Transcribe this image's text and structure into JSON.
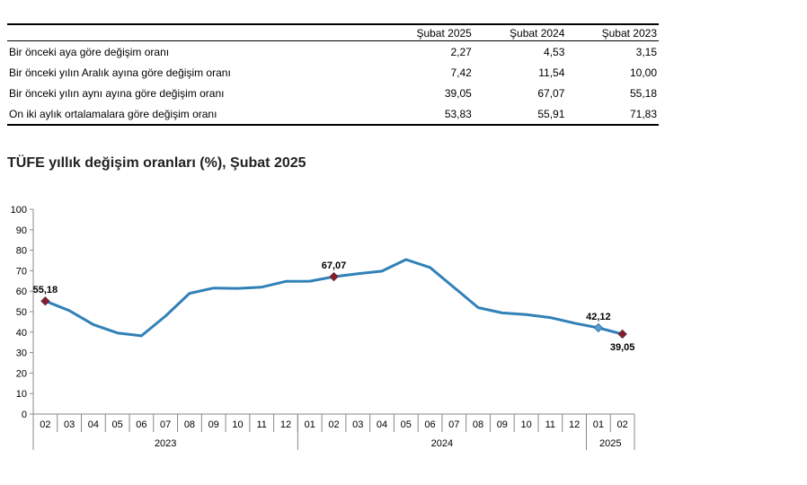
{
  "table": {
    "headers": [
      "",
      "Şubat 2025",
      "Şubat 2024",
      "Şubat 2023"
    ],
    "rows": [
      {
        "label": "Bir önceki aya göre değişim oranı",
        "values": [
          "2,27",
          "4,53",
          "3,15"
        ]
      },
      {
        "label": "Bir önceki yılın Aralık ayına göre değişim oranı",
        "values": [
          "7,42",
          "11,54",
          "10,00"
        ]
      },
      {
        "label": "Bir önceki yılın aynı ayına göre değişim oranı",
        "values": [
          "39,05",
          "67,07",
          "55,18"
        ]
      },
      {
        "label": "On iki aylık ortalamalara göre değişim oranı",
        "values": [
          "53,83",
          "55,91",
          "71,83"
        ]
      }
    ]
  },
  "chart_title": "TÜFE yıllık değişim oranları (%), Şubat 2025",
  "chart_data": {
    "type": "line",
    "title": "TÜFE yıllık değişim oranları (%), Şubat 2025",
    "xlabel": "",
    "ylabel": "",
    "ylim": [
      0,
      100
    ],
    "yticks": [
      0,
      10,
      20,
      30,
      40,
      50,
      60,
      70,
      80,
      90,
      100
    ],
    "grid": false,
    "legend": "none",
    "categories": [
      "02",
      "03",
      "04",
      "05",
      "06",
      "07",
      "08",
      "09",
      "10",
      "11",
      "12",
      "01",
      "02",
      "03",
      "04",
      "05",
      "06",
      "07",
      "08",
      "09",
      "10",
      "11",
      "12",
      "01",
      "02"
    ],
    "year_groups": [
      {
        "label": "2023",
        "start": 0,
        "end": 10
      },
      {
        "label": "2024",
        "start": 11,
        "end": 22
      },
      {
        "label": "2025",
        "start": 23,
        "end": 24
      }
    ],
    "series": [
      {
        "color": "#3181b8",
        "values": [
          55.18,
          50.51,
          43.68,
          39.59,
          38.21,
          47.83,
          58.94,
          61.53,
          61.36,
          61.98,
          64.77,
          64.86,
          67.07,
          68.5,
          69.8,
          75.45,
          71.6,
          61.78,
          51.97,
          49.38,
          48.58,
          47.09,
          44.38,
          42.12,
          39.05
        ]
      }
    ],
    "annotations": [
      {
        "index": 0,
        "label": "55,18",
        "position": "above"
      },
      {
        "index": 12,
        "label": "67,07",
        "position": "above"
      },
      {
        "index": 23,
        "label": "42,12",
        "position": "above"
      },
      {
        "index": 24,
        "label": "39,05",
        "position": "below"
      }
    ],
    "highlight_points": [
      0,
      12,
      24
    ],
    "diamond_points": [
      23
    ]
  }
}
